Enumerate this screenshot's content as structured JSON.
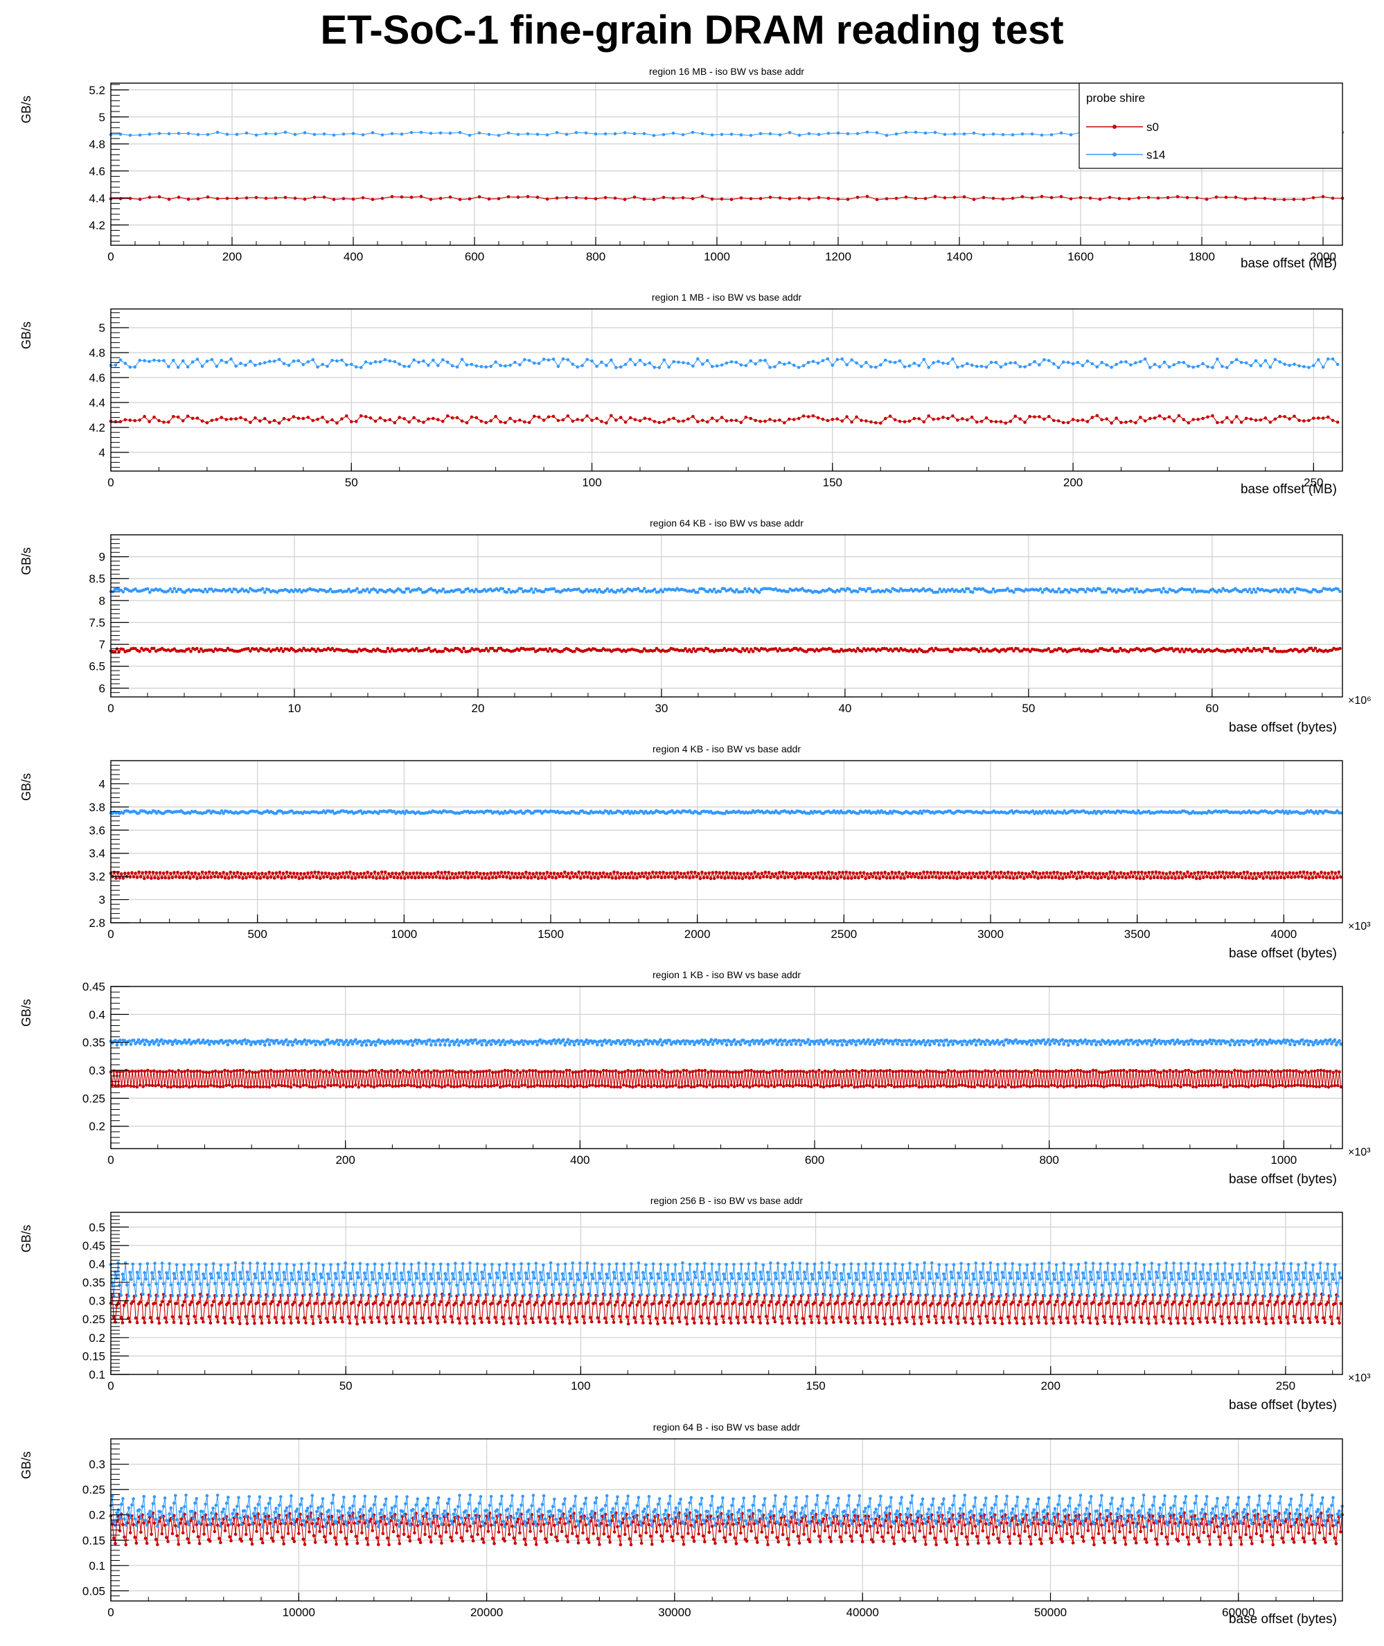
{
  "title": "ET-SoC-1 fine-grain DRAM reading test",
  "legend": {
    "header": "probe shire",
    "entries": [
      {
        "name": "s0",
        "color": "#c80000"
      },
      {
        "name": "s14",
        "color": "#3399ff"
      }
    ]
  },
  "colors": {
    "s0": "#c80000",
    "s14": "#3399ff",
    "grid": "#cfcfcf",
    "frame": "#000000"
  },
  "chart_data": [
    {
      "type": "line",
      "title": "region 16 MB - iso BW vs base addr",
      "ylabel": "GB/s",
      "xlabel": "base offset (MB)",
      "x_multiplier": "",
      "xlim": [
        0,
        2032
      ],
      "ylim": [
        4.05,
        5.25
      ],
      "xticks": [
        0,
        200,
        400,
        600,
        800,
        1000,
        1200,
        1400,
        1600,
        1800,
        2000
      ],
      "xtick_labels": [
        "0",
        "200",
        "400",
        "600",
        "800",
        "1000",
        "1200",
        "1400",
        "1600",
        "1800",
        "2000"
      ],
      "yticks": [
        4.2,
        4.4,
        4.6,
        4.8,
        5,
        5.2
      ],
      "ytick_labels": [
        "4.2",
        "4.4",
        "4.6",
        "4.8",
        "5",
        "5.2"
      ],
      "series": [
        {
          "name": "s0",
          "n": 128,
          "x_step": 16,
          "base": 4.4,
          "pattern": [
            0
          ],
          "noise": 0.012,
          "seed": 11
        },
        {
          "name": "s14",
          "n": 128,
          "x_step": 16,
          "base": 4.875,
          "pattern": [
            0
          ],
          "noise": 0.012,
          "seed": 12
        }
      ]
    },
    {
      "type": "line",
      "title": "region 1 MB - iso BW vs base addr",
      "ylabel": "GB/s",
      "xlabel": "base offset (MB)",
      "x_multiplier": "",
      "xlim": [
        0,
        256
      ],
      "ylim": [
        3.85,
        5.15
      ],
      "xticks": [
        0,
        50,
        100,
        150,
        200,
        250
      ],
      "xtick_labels": [
        "0",
        "50",
        "100",
        "150",
        "200",
        "250"
      ],
      "yticks": [
        4,
        4.2,
        4.4,
        4.6,
        4.8,
        5
      ],
      "ytick_labels": [
        "4",
        "4.2",
        "4.4",
        "4.6",
        "4.8",
        "5"
      ],
      "series": [
        {
          "name": "s0",
          "n": 256,
          "x_step": 1,
          "base": 4.265,
          "pattern": [
            0
          ],
          "noise": 0.03,
          "seed": 21
        },
        {
          "name": "s14",
          "n": 256,
          "x_step": 1,
          "base": 4.715,
          "pattern": [
            0
          ],
          "noise": 0.035,
          "seed": 22
        }
      ]
    },
    {
      "type": "line",
      "title": "region 64 KB - iso BW vs base addr",
      "ylabel": "GB/s",
      "xlabel": "base offset (bytes)",
      "x_multiplier": "×10⁶",
      "xlim": [
        0,
        67.1
      ],
      "ylim": [
        5.8,
        9.5
      ],
      "xticks": [
        0,
        10,
        20,
        30,
        40,
        50,
        60
      ],
      "xtick_labels": [
        "0",
        "10",
        "20",
        "30",
        "40",
        "50",
        "60"
      ],
      "yticks": [
        6,
        6.5,
        7,
        7.5,
        8,
        8.5,
        9
      ],
      "ytick_labels": [
        "6",
        "6.5",
        "7",
        "7.5",
        "8",
        "8.5",
        "9"
      ],
      "series": [
        {
          "name": "s0",
          "n": 600,
          "x_step": 0.1118,
          "base": 6.87,
          "pattern": [
            0
          ],
          "noise": 0.04,
          "seed": 31
        },
        {
          "name": "s14",
          "n": 600,
          "x_step": 0.1118,
          "base": 8.23,
          "pattern": [
            0
          ],
          "noise": 0.045,
          "seed": 32
        }
      ]
    },
    {
      "type": "line",
      "title": "region 4 KB - iso BW vs base addr",
      "ylabel": "GB/s",
      "xlabel": "base offset (bytes)",
      "x_multiplier": "×10³",
      "xlim": [
        0,
        4200
      ],
      "ylim": [
        2.8,
        4.2
      ],
      "xticks": [
        0,
        500,
        1000,
        1500,
        2000,
        2500,
        3000,
        3500,
        4000
      ],
      "xtick_labels": [
        "0",
        "500",
        "1000",
        "1500",
        "2000",
        "2500",
        "3000",
        "3500",
        "4000"
      ],
      "yticks": [
        2.8,
        3,
        3.2,
        3.4,
        3.6,
        3.8,
        4
      ],
      "ytick_labels": [
        "2.8",
        "3",
        "3.2",
        "3.4",
        "3.6",
        "3.8",
        "4"
      ],
      "series": [
        {
          "name": "s0",
          "n": 700,
          "x_step": 6,
          "base": 3.21,
          "pattern": [
            0.02,
            -0.02
          ],
          "noise": 0.008,
          "seed": 41
        },
        {
          "name": "s14",
          "n": 700,
          "x_step": 6,
          "base": 3.755,
          "pattern": [
            0
          ],
          "noise": 0.012,
          "seed": 42
        }
      ]
    },
    {
      "type": "line",
      "title": "region 1 KB - iso BW vs base addr",
      "ylabel": "GB/s",
      "xlabel": "base offset (bytes)",
      "x_multiplier": "×10³",
      "xlim": [
        0,
        1050
      ],
      "ylim": [
        0.16,
        0.45
      ],
      "xticks": [
        0,
        200,
        400,
        600,
        800,
        1000
      ],
      "xtick_labels": [
        "0",
        "200",
        "400",
        "600",
        "800",
        "1000"
      ],
      "yticks": [
        0.2,
        0.25,
        0.3,
        0.35,
        0.4,
        0.45
      ],
      "ytick_labels": [
        "0.2",
        "0.25",
        "0.3",
        "0.35",
        "0.4",
        "0.45"
      ],
      "series": [
        {
          "name": "s0",
          "n": 800,
          "x_step": 1.3125,
          "base": 0.285,
          "pattern": [
            0.013,
            -0.013
          ],
          "noise": 0.002,
          "seed": 51
        },
        {
          "name": "s14",
          "n": 800,
          "x_step": 1.3125,
          "base": 0.351,
          "pattern": [
            0.002,
            -0.004,
            0.001
          ],
          "noise": 0.002,
          "seed": 52
        }
      ]
    },
    {
      "type": "line",
      "title": "region 256 B - iso BW vs base addr",
      "ylabel": "GB/s",
      "xlabel": "base offset (bytes)",
      "x_multiplier": "×10³",
      "xlim": [
        0,
        262.1
      ],
      "ylim": [
        0.1,
        0.54
      ],
      "xticks": [
        0,
        50,
        100,
        150,
        200,
        250
      ],
      "xtick_labels": [
        "0",
        "50",
        "100",
        "150",
        "200",
        "250"
      ],
      "yticks": [
        0.1,
        0.15,
        0.2,
        0.25,
        0.3,
        0.35,
        0.4,
        0.45,
        0.5
      ],
      "ytick_labels": [
        "0.1",
        "0.15",
        "0.2",
        "0.25",
        "0.3",
        "0.35",
        "0.4",
        "0.45",
        "0.5"
      ],
      "series": [
        {
          "name": "s0",
          "n": 840,
          "x_step": 0.312,
          "base": 0.285,
          "pattern": [
            0.01,
            0.03,
            -0.03,
            -0.045,
            0.005
          ],
          "noise": 0.003,
          "seed": 61
        },
        {
          "name": "s14",
          "n": 840,
          "x_step": 0.312,
          "base": 0.355,
          "pattern": [
            0.045,
            -0.01,
            -0.04,
            0.02,
            0.005
          ],
          "noise": 0.003,
          "seed": 62
        }
      ]
    },
    {
      "type": "line",
      "title": "region 64 B - iso BW vs base addr",
      "ylabel": "GB/s",
      "xlabel": "base offset (bytes)",
      "x_multiplier": "",
      "xlim": [
        0,
        65536
      ],
      "ylim": [
        0.03,
        0.35
      ],
      "xticks": [
        0,
        10000,
        20000,
        30000,
        40000,
        50000,
        60000
      ],
      "xtick_labels": [
        "0",
        "10000",
        "20000",
        "30000",
        "40000",
        "50000",
        "60000"
      ],
      "yticks": [
        0.05,
        0.1,
        0.15,
        0.2,
        0.25,
        0.3
      ],
      "ytick_labels": [
        "0.05",
        "0.1",
        "0.15",
        "0.2",
        "0.25",
        "0.3"
      ],
      "series": [
        {
          "name": "s0",
          "n": 820,
          "x_step": 80,
          "base": 0.175,
          "pattern": [
            0.025,
            0.005,
            -0.02,
            -0.03,
            0.01,
            0.02,
            -0.01
          ],
          "noise": 0.004,
          "seed": 71
        },
        {
          "name": "s14",
          "n": 820,
          "x_step": 80,
          "base": 0.2,
          "pattern": [
            0.02,
            0.035,
            -0.01,
            -0.02,
            0.005,
            0.01,
            -0.005
          ],
          "noise": 0.004,
          "seed": 72
        }
      ]
    }
  ]
}
